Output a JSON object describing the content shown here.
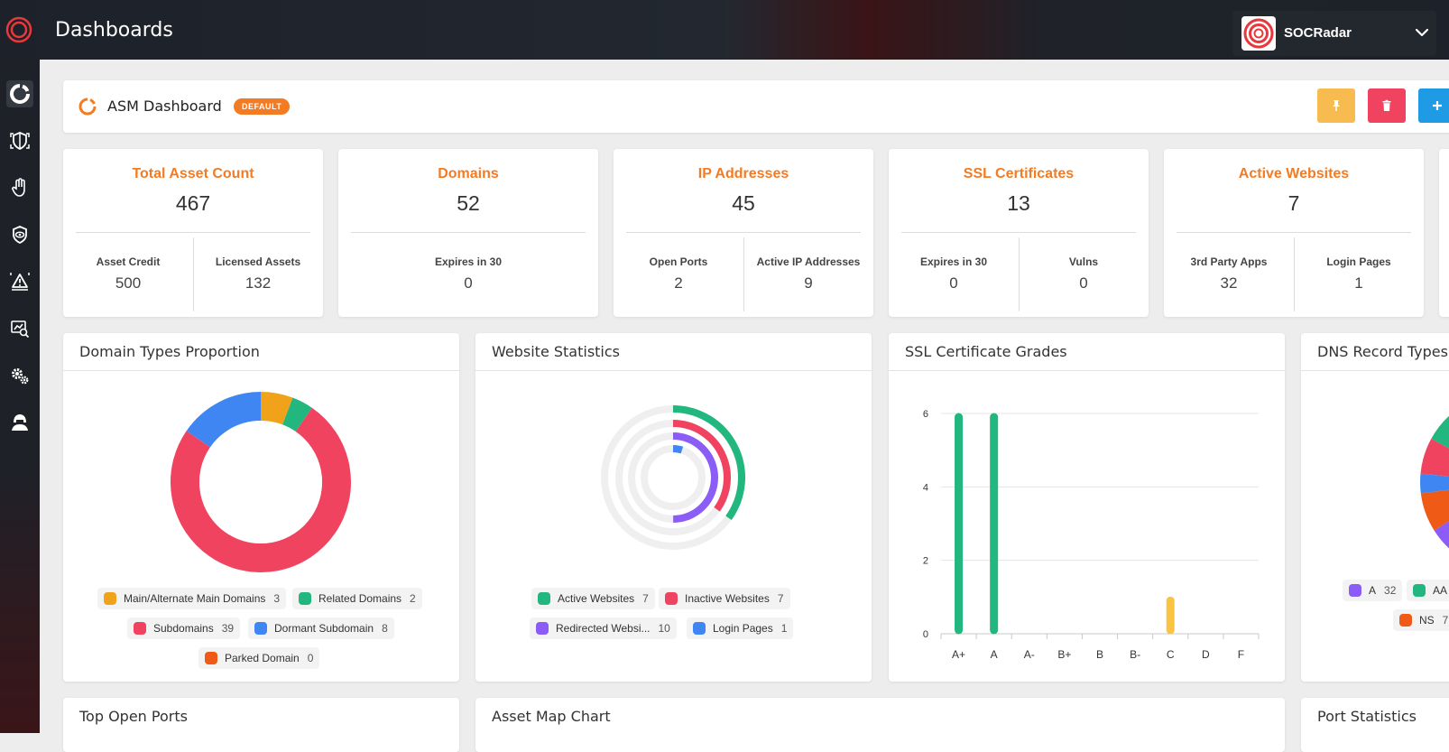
{
  "app": {
    "title": "Dashboards"
  },
  "org": {
    "name": "SOCRadar"
  },
  "sidebar": {
    "items": [
      "dashboard-icon",
      "shield-icon",
      "hand-icon",
      "eye-shield-icon",
      "alert-icon",
      "analytics-icon",
      "gears-icon",
      "hacker-icon"
    ]
  },
  "dashboard": {
    "title": "ASM Dashboard",
    "badge": "DEFAULT"
  },
  "cards": [
    {
      "title": "Total Asset Count",
      "value": "467",
      "subs": [
        {
          "label": "Asset Credit",
          "value": "500"
        },
        {
          "label": "Licensed Assets",
          "value": "132"
        }
      ]
    },
    {
      "title": "Domains",
      "value": "52",
      "subs": [
        {
          "label": "Expires in 30",
          "value": "0"
        }
      ]
    },
    {
      "title": "IP Addresses",
      "value": "45",
      "subs": [
        {
          "label": "Open Ports",
          "value": "2"
        },
        {
          "label": "Active IP Addresses",
          "value": "9"
        }
      ]
    },
    {
      "title": "SSL Certificates",
      "value": "13",
      "subs": [
        {
          "label": "Expires in 30",
          "value": "0"
        },
        {
          "label": "Vulns",
          "value": "0"
        }
      ]
    },
    {
      "title": "Active Websites",
      "value": "7",
      "subs": [
        {
          "label": "3rd Party Apps",
          "value": "32"
        },
        {
          "label": "Login Pages",
          "value": "1"
        }
      ]
    }
  ],
  "panels": {
    "domain_types": {
      "title": "Domain Types Proportion"
    },
    "website_stats": {
      "title": "Website Statistics"
    },
    "ssl_grades": {
      "title": "SSL Certificate Grades"
    },
    "dns_records": {
      "title": "DNS Record Types"
    },
    "top_ports": {
      "title": "Top Open Ports"
    },
    "asset_map": {
      "title": "Asset Map Chart"
    },
    "port_stats": {
      "title": "Port Statistics"
    }
  },
  "colors": {
    "orange": "#f27b24",
    "green": "#22b77e",
    "red": "#f0435f",
    "blue": "#3f86f2",
    "amber": "#f0a21a",
    "purple": "#8b5cf6",
    "dark_orange": "#ef5a16",
    "yellow": "#f8c441"
  },
  "chart_data": [
    {
      "type": "pie",
      "categories": [
        "Main/Alternate Main Domains",
        "Related Domains",
        "Subdomains",
        "Dormant Subdomain",
        "Parked Domain"
      ],
      "values": [
        3,
        2,
        39,
        8,
        0
      ],
      "colors": [
        "#f0a21a",
        "#22b77e",
        "#f0435f",
        "#3f86f2",
        "#ef5a16"
      ]
    },
    {
      "type": "bar",
      "categories": [
        "Active Websites",
        "Inactive Websites",
        "Redirected Websi...",
        "Login Pages"
      ],
      "values": [
        7,
        7,
        10,
        1
      ],
      "colors": [
        "#22b77e",
        "#f0435f",
        "#8b5cf6",
        "#3f86f2"
      ]
    },
    {
      "type": "bar",
      "categories": [
        "A+",
        "A",
        "A-",
        "B+",
        "B",
        "B-",
        "C",
        "D",
        "F"
      ],
      "values": [
        6,
        6,
        0,
        0,
        0,
        0,
        1,
        0,
        0
      ],
      "colors": [
        "#22b77e",
        "#22b77e",
        "#22b77e",
        "#22b77e",
        "#22b77e",
        "#22b77e",
        "#f8c441",
        "#22b77e",
        "#22b77e"
      ],
      "yticks": [
        "0",
        "2",
        "4",
        "6"
      ],
      "ylim": [
        0,
        6
      ],
      "grid": true
    },
    {
      "type": "pie",
      "categories": [
        "A",
        "AA",
        "NS"
      ],
      "values": [
        32,
        null,
        7
      ],
      "legend_labels": [
        "A",
        "AA",
        "NS"
      ],
      "legend_counts": [
        "32",
        "",
        "7"
      ],
      "colors": [
        "#8b5cf6",
        "#22b77e",
        "#ef5a16"
      ]
    }
  ]
}
